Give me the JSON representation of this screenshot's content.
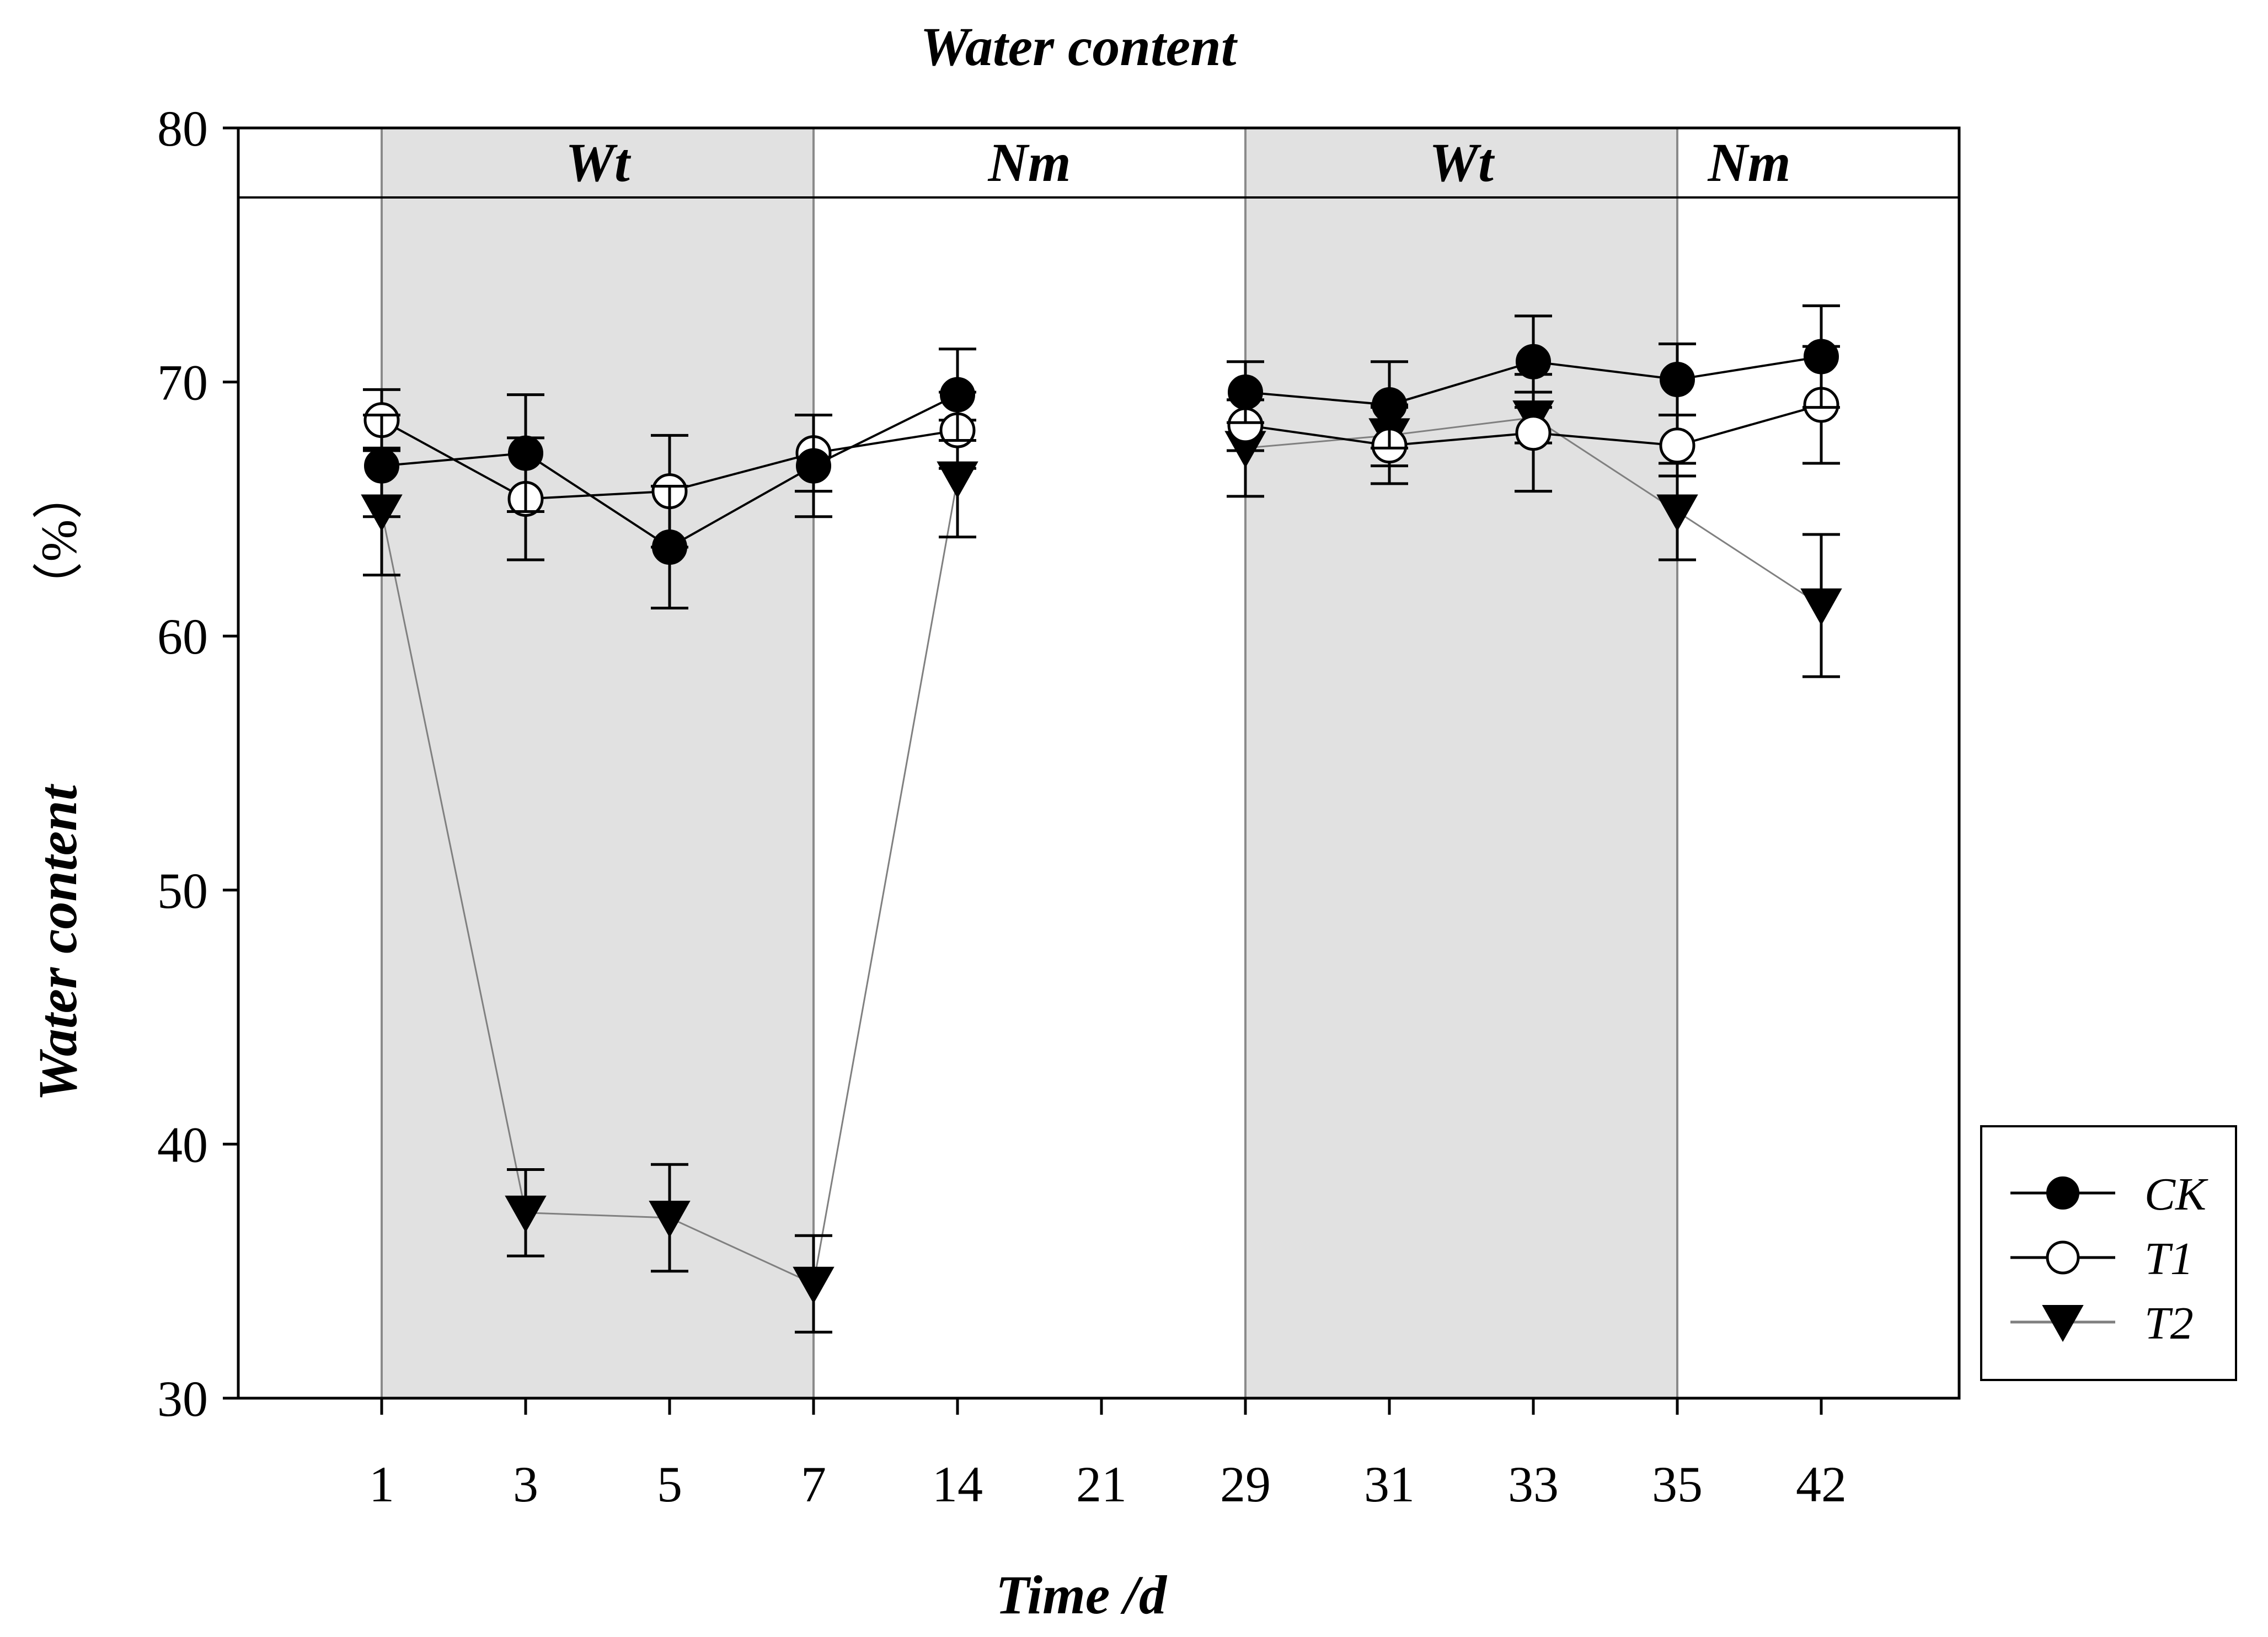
{
  "chart_data": {
    "type": "line",
    "title": "Water content",
    "xlabel": "Time /d",
    "ylabel_main": "Water content",
    "ylabel_unit": "（%）",
    "ylim": [
      30,
      80
    ],
    "yticks": [
      30,
      40,
      50,
      60,
      70,
      80
    ],
    "categories": [
      "1",
      "3",
      "5",
      "7",
      "14",
      "21",
      "29",
      "31",
      "33",
      "35",
      "42"
    ],
    "phases": [
      {
        "label": "Wt",
        "from": "1",
        "to": "7",
        "shaded": true
      },
      {
        "label": "Nm",
        "from": "7",
        "to": "29",
        "shaded": false
      },
      {
        "label": "Wt",
        "from": "29",
        "to": "35",
        "shaded": true
      },
      {
        "label": "Nm",
        "from": "35",
        "to": "42",
        "shaded": false
      }
    ],
    "series": [
      {
        "name": "CK",
        "marker": "filled-circle",
        "line_color": "#000000",
        "segments": [
          {
            "x": [
              "1",
              "3",
              "5",
              "7",
              "14"
            ],
            "values": [
              66.7,
              67.2,
              63.5,
              66.7,
              69.5
            ],
            "err": [
              2.0,
              2.3,
              2.4,
              2.0,
              1.8
            ]
          },
          {
            "x": [
              "29",
              "31",
              "33",
              "35",
              "42"
            ],
            "values": [
              69.6,
              69.1,
              70.8,
              70.1,
              71.0
            ],
            "err": [
              1.2,
              1.7,
              1.8,
              1.4,
              2.0
            ]
          }
        ]
      },
      {
        "name": "T1",
        "marker": "open-circle",
        "line_color": "#000000",
        "segments": [
          {
            "x": [
              "1",
              "3",
              "5",
              "7",
              "14"
            ],
            "values": [
              68.5,
              65.4,
              65.7,
              67.2,
              68.1
            ],
            "err": [
              1.2,
              2.4,
              2.2,
              1.5,
              1.5
            ]
          },
          {
            "x": [
              "29",
              "31",
              "33",
              "35",
              "42"
            ],
            "values": [
              68.3,
              67.5,
              68.0,
              67.5,
              69.1
            ],
            "err": [
              1.0,
              1.5,
              2.3,
              1.2,
              2.3
            ]
          }
        ]
      },
      {
        "name": "T2",
        "marker": "filled-triangle-down",
        "line_color": "#808080",
        "segments": [
          {
            "x": [
              "1",
              "3",
              "5",
              "7",
              "14"
            ],
            "values": [
              64.9,
              37.3,
              37.1,
              34.5,
              66.2
            ],
            "err": [
              2.5,
              1.7,
              2.1,
              1.9,
              2.3
            ]
          },
          {
            "x": [
              "29",
              "31",
              "33",
              "35",
              "42"
            ],
            "values": [
              67.4,
              67.9,
              68.6,
              64.9,
              61.2
            ],
            "err": [
              1.9,
              1.2,
              1.0,
              1.9,
              2.8
            ]
          }
        ]
      }
    ],
    "legend": {
      "placement": "right-lower",
      "entries": [
        "CK",
        "T1",
        "T2"
      ]
    }
  }
}
